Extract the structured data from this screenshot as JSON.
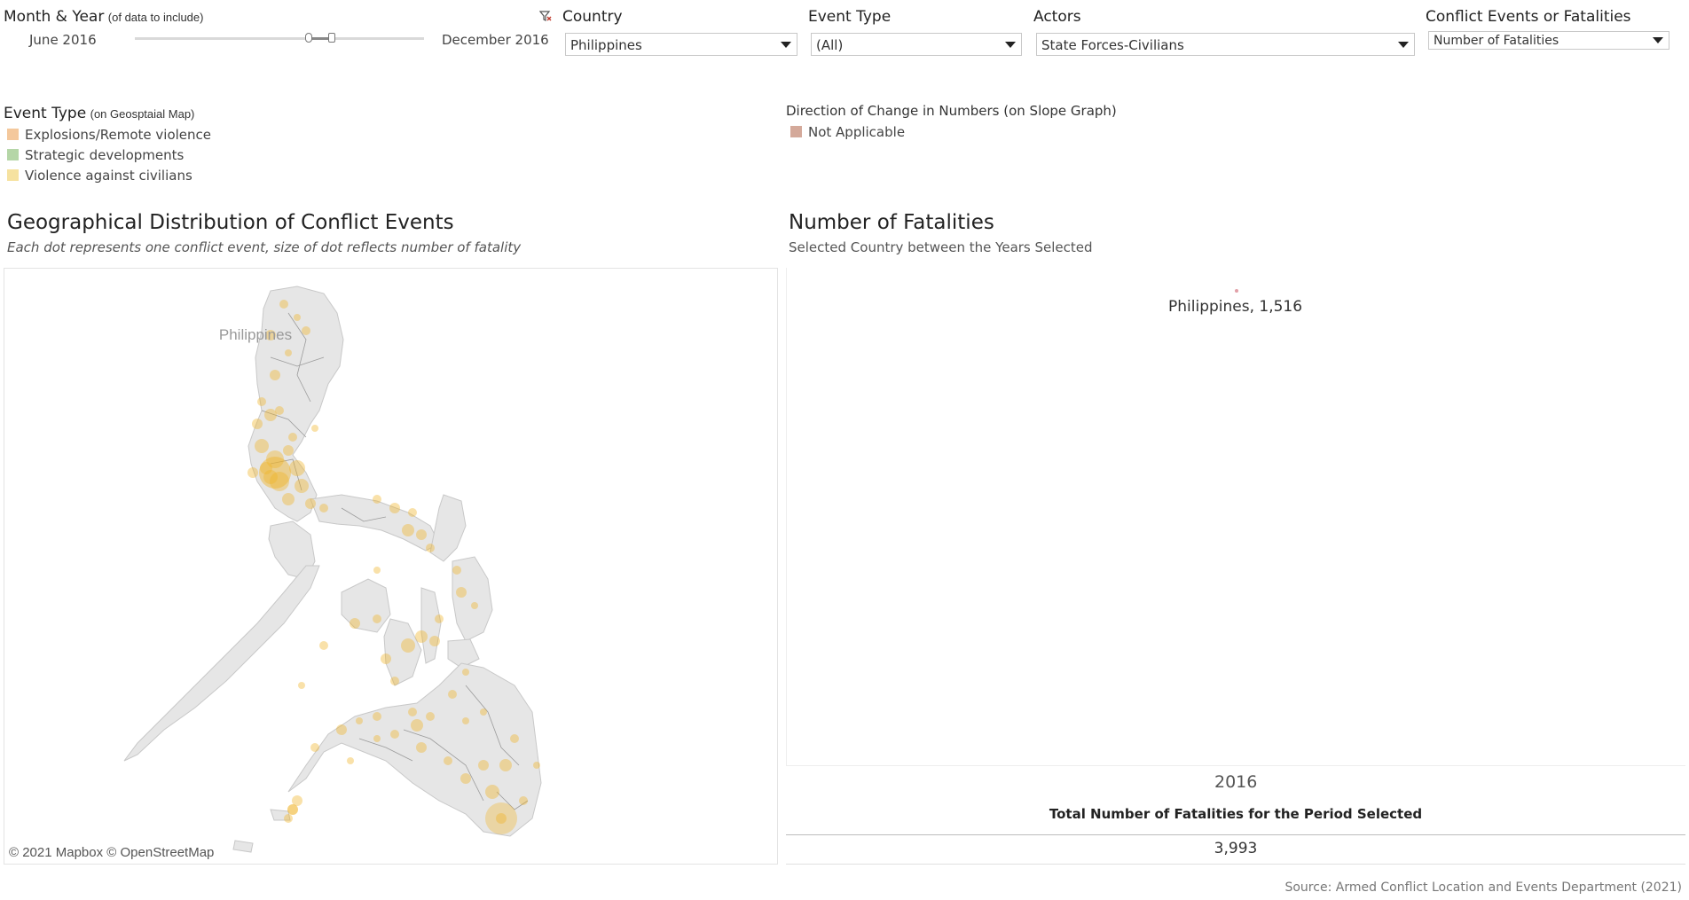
{
  "filters": {
    "month_year": {
      "label": "Month & Year",
      "hint": "(of data to include)",
      "start": "June 2016",
      "end": "December 2016",
      "range_fraction": [
        0.6,
        0.68
      ]
    },
    "country": {
      "label": "Country",
      "value": "Philippines"
    },
    "event_type": {
      "label": "Event Type",
      "value": "(All)"
    },
    "actors": {
      "label": "Actors",
      "value": "State Forces-Civilians"
    },
    "measure": {
      "label": "Conflict Events or Fatalities",
      "value": "Number of Fatalities"
    },
    "clear_icon": "clear-filter-icon"
  },
  "legend_event": {
    "title": "Event Type",
    "hint": "(on Geosptaial Map)",
    "items": [
      {
        "label": "Explosions/Remote violence",
        "color": "#f4c89c"
      },
      {
        "label": "Strategic developments",
        "color": "#b5d6a7"
      },
      {
        "label": "Violence against civilians",
        "color": "#f6e2a0"
      }
    ]
  },
  "legend_direction": {
    "title": "Direction of Change in Numbers (on Slope Graph)",
    "items": [
      {
        "label": "Not Applicable",
        "color": "#d4a99a"
      }
    ]
  },
  "map": {
    "title": "Geographical Distribution of Conflict Events",
    "subtitle": "Each dot represents one conflict event, size of dot reflects number of fatality",
    "country_label": "Philippines",
    "attribution": "© 2021 Mapbox © OpenStreetMap",
    "dot_color": "#f0b429"
  },
  "slope": {
    "title": "Number of Fatalities",
    "subtitle": "Selected Country between the Years Selected",
    "point_label": "Philippines, 1,516",
    "point_color": "#e2a0a8",
    "year": "2016"
  },
  "total": {
    "label": "Total Number of Fatalities for the Period Selected",
    "value": "3,993"
  },
  "source": "Source: Armed Conflict Location and Events Department (2021)"
}
